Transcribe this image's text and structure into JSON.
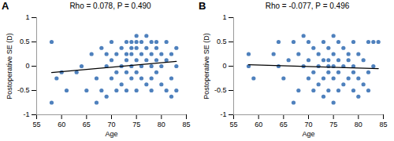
{
  "chart_data": [
    {
      "type": "scatter",
      "panel": "A",
      "title": "Rho = 0.078, P = 0.490",
      "x_label": "Age",
      "y_label": "Postoperative SE (D)",
      "color": "#4f81bd",
      "marker": "circle",
      "xlim": [
        55,
        85
      ],
      "xticks": [
        55,
        60,
        65,
        70,
        75,
        80,
        85
      ],
      "ylim": [
        -1,
        1
      ],
      "yticks": [
        -1,
        -0.5,
        0,
        0.5,
        1
      ],
      "x": [
        58,
        58,
        59,
        60,
        61,
        63,
        64,
        65,
        66,
        67,
        67,
        68,
        68,
        69,
        69,
        69,
        70,
        70,
        70,
        71,
        71,
        71,
        72,
        72,
        72,
        73,
        73,
        73,
        73,
        73,
        74,
        74,
        74,
        74,
        74,
        75,
        75,
        75,
        75,
        75,
        75,
        76,
        76,
        76,
        76,
        77,
        77,
        77,
        77,
        78,
        78,
        78,
        78,
        78,
        79,
        79,
        79,
        79,
        80,
        80,
        80,
        81,
        81,
        81,
        82,
        82,
        82,
        83,
        83,
        83
      ],
      "values": [
        0.5,
        -0.75,
        -0.25,
        -0.125,
        -0.5,
        -0.125,
        0,
        -0.5,
        0.25,
        -0.25,
        -0.75,
        0.375,
        -0.5,
        0.25,
        0,
        -0.625,
        0.5,
        0.125,
        -0.25,
        0.25,
        -0.125,
        -0.5,
        0.375,
        0,
        -0.375,
        0.5,
        0.25,
        0.125,
        -0.125,
        -0.5,
        0.5,
        0.375,
        0.25,
        0,
        -0.25,
        0.625,
        0.5,
        0.375,
        0.125,
        -0.125,
        -0.5,
        0.5,
        0.25,
        0,
        -0.25,
        0.625,
        0.375,
        0.125,
        -0.375,
        0.5,
        0.25,
        0,
        -0.25,
        -0.5,
        0.5,
        0.375,
        0.125,
        -0.125,
        0.25,
        0,
        -0.375,
        0.5,
        0.125,
        -0.5,
        0.25,
        -0.25,
        -0.625,
        0.375,
        0,
        -0.5
      ],
      "trend_line": {
        "x": [
          58,
          83
        ],
        "values": [
          -0.13,
          0.1
        ],
        "color": "#000000"
      }
    },
    {
      "type": "scatter",
      "panel": "B",
      "title": "Rho = -0.077, P = 0.496",
      "x_label": "Age",
      "y_label": "Postoperative SE (D)",
      "color": "#4f81bd",
      "marker": "circle",
      "xlim": [
        55,
        85
      ],
      "xticks": [
        55,
        60,
        65,
        70,
        75,
        80,
        85
      ],
      "ylim": [
        -1,
        1
      ],
      "yticks": [
        -1,
        -0.5,
        0,
        0.5,
        1
      ],
      "x": [
        58,
        58,
        59,
        63,
        64,
        64,
        65,
        66,
        67,
        67,
        68,
        68,
        69,
        69,
        70,
        70,
        70,
        71,
        71,
        71,
        72,
        72,
        72,
        73,
        73,
        73,
        73,
        74,
        74,
        74,
        74,
        74,
        75,
        75,
        75,
        75,
        75,
        76,
        76,
        76,
        76,
        77,
        77,
        77,
        78,
        78,
        78,
        79,
        79,
        79,
        79,
        80,
        80,
        80,
        81,
        81,
        82,
        82,
        82,
        83,
        83,
        84
      ],
      "values": [
        0.25,
        0,
        -0.25,
        0.25,
        0.5,
        0,
        -0.25,
        0.125,
        0.5,
        -0.75,
        0.25,
        -0.5,
        0.625,
        0,
        0.5,
        0.125,
        -0.25,
        0.375,
        -0.125,
        -0.5,
        0.25,
        0,
        -0.375,
        0.5,
        0.125,
        -0.25,
        -0.625,
        0.375,
        0.125,
        0,
        -0.125,
        -0.5,
        0.625,
        0.25,
        0,
        -0.25,
        -0.75,
        0.5,
        0.125,
        -0.125,
        -0.5,
        0.375,
        0,
        -0.375,
        0.25,
        0.125,
        -0.25,
        0.5,
        0,
        -0.125,
        -0.5,
        0.25,
        -0.25,
        -0.625,
        0.125,
        -0.375,
        0.5,
        -0.125,
        -0.5,
        0.5,
        0,
        0.5
      ],
      "trend_line": {
        "x": [
          58,
          84
        ],
        "values": [
          0.03,
          -0.05
        ],
        "color": "#000000"
      }
    }
  ]
}
